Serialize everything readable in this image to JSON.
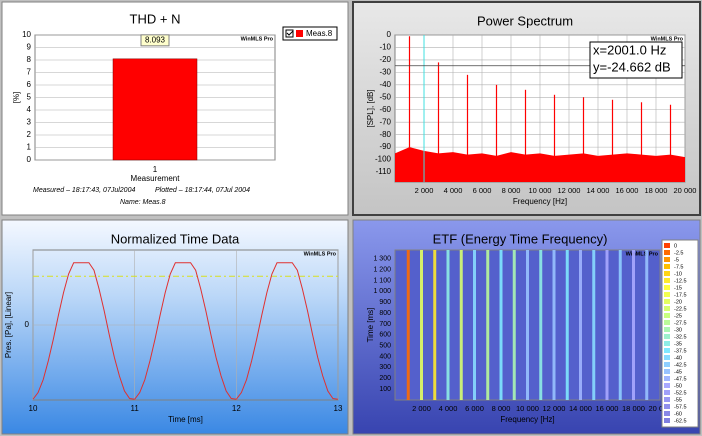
{
  "chart_data": [
    {
      "type": "bar",
      "title": "THD + N",
      "watermark": "WinMLS Pro",
      "ylabel": "[%]",
      "xlabel": "Measurement",
      "categories": [
        "1"
      ],
      "series": [
        {
          "name": "Meas.8",
          "color": "#ff0000",
          "values": [
            8.093
          ],
          "value_labels": [
            "8.093"
          ]
        }
      ],
      "ylim": [
        0,
        10
      ],
      "yticks": [
        0,
        1,
        2,
        3,
        4,
        5,
        6,
        7,
        8,
        9,
        10
      ],
      "grid": true,
      "legend": "top-right",
      "footer": [
        "Measured – 18:17:43, 07Jul2004",
        "Plotted – 18:17:44, 07Jul 2004",
        "Name: Meas.8"
      ]
    },
    {
      "type": "spectrum",
      "title": "Power Spectrum",
      "watermark": "WinMLS Pro",
      "ylabel": "[SPL], [dB]",
      "xlabel": "Frequency [Hz]",
      "xlim": [
        0,
        20000
      ],
      "ylim": [
        -118,
        0
      ],
      "xticks": [
        {
          "value": 2000,
          "label": "2 000"
        },
        {
          "value": 4000,
          "label": "4 000"
        },
        {
          "value": 6000,
          "label": "6 000"
        },
        {
          "value": 8000,
          "label": "8 000"
        },
        {
          "value": 10000,
          "label": "10 000"
        },
        {
          "value": 12000,
          "label": "12 000"
        },
        {
          "value": 14000,
          "label": "14 000"
        },
        {
          "value": 16000,
          "label": "16 000"
        },
        {
          "value": 18000,
          "label": "18 000"
        },
        {
          "value": 20000,
          "label": "20 000"
        }
      ],
      "yticks": [
        0,
        -10,
        -20,
        -30,
        -40,
        -50,
        -60,
        -70,
        -80,
        -90,
        -100,
        -110
      ],
      "grid": true,
      "series": [
        {
          "style": "stem",
          "color": "#ff0000",
          "x": [
            1000,
            3000,
            5000,
            7000,
            9000,
            11000,
            13000,
            15000,
            17000,
            19000
          ],
          "values": [
            -1,
            -22,
            -32,
            -40,
            -44,
            -48,
            -50,
            -52,
            -54,
            -56
          ]
        },
        {
          "style": "area",
          "color": "#ff0000",
          "x": [
            0,
            1000,
            2000,
            3000,
            4000,
            5000,
            6000,
            7000,
            8000,
            9000,
            10000,
            11000,
            12000,
            13000,
            14000,
            15000,
            16000,
            17000,
            18000,
            19000,
            20000
          ],
          "values": [
            -95,
            -90,
            -93,
            -95,
            -94,
            -96,
            -95,
            -97,
            -94,
            -96,
            -95,
            -97,
            -96,
            -95,
            -97,
            -96,
            -95,
            -96,
            -97,
            -96,
            -98
          ]
        }
      ],
      "cursor": {
        "x": 2001.0,
        "y": -24.662,
        "color": "#40e0e0",
        "labels": [
          "x=2001.0 Hz",
          "y=-24.662 dB"
        ]
      }
    },
    {
      "type": "line",
      "title": "Normalized Time Data",
      "watermark": "WinMLS Pro",
      "ylabel": "Pres. [Pa], [Linear]",
      "xlabel": "Time [ms]",
      "xlim": [
        10,
        13
      ],
      "ylim": [
        -1,
        1
      ],
      "xticks": [
        10,
        11,
        12,
        13
      ],
      "yticks": [
        0
      ],
      "grid": true,
      "series": [
        {
          "color": "#e03030",
          "x": [
            10,
            10.05,
            10.1,
            10.15,
            10.2,
            10.25,
            10.3,
            10.35,
            10.4,
            10.45,
            10.5,
            10.55,
            10.6,
            10.65,
            10.7,
            10.75,
            10.8,
            10.85,
            10.9,
            10.95,
            11,
            11.05,
            11.1,
            11.15,
            11.2,
            11.25,
            11.3,
            11.35,
            11.4,
            11.45,
            11.5,
            11.55,
            11.6,
            11.65,
            11.7,
            11.75,
            11.8,
            11.85,
            11.9,
            11.95,
            12,
            12.05,
            12.1,
            12.15,
            12.2,
            12.25,
            12.3,
            12.35,
            12.4,
            12.45,
            12.5,
            12.55,
            12.6,
            12.65,
            12.7,
            12.75,
            12.8,
            12.85,
            12.9,
            12.95,
            13
          ],
          "values": [
            -0.99,
            -0.9,
            -0.73,
            -0.48,
            -0.19,
            0.13,
            0.43,
            0.68,
            0.83,
            0.83,
            0.83,
            0.83,
            0.73,
            0.48,
            0.19,
            -0.13,
            -0.43,
            -0.68,
            -0.88,
            -0.98,
            -0.99,
            -0.9,
            -0.73,
            -0.48,
            -0.19,
            0.13,
            0.43,
            0.68,
            0.83,
            0.83,
            0.83,
            0.83,
            0.73,
            0.48,
            0.19,
            -0.13,
            -0.43,
            -0.68,
            -0.88,
            -0.98,
            -0.99,
            -0.9,
            -0.73,
            -0.48,
            -0.19,
            0.13,
            0.43,
            0.68,
            0.83,
            0.83,
            0.83,
            0.83,
            0.73,
            0.48,
            0.19,
            -0.13,
            -0.43,
            -0.68,
            -0.88,
            -0.98,
            -0.99
          ]
        }
      ],
      "hline": {
        "value": 0.65,
        "color": "#d8e020"
      }
    },
    {
      "type": "heatmap",
      "title": "ETF (Energy Time Frequency)",
      "watermark": "WinMLS Pro",
      "ylabel": "Time [ms]",
      "xlabel": "Frequency [Hz]",
      "xlim": [
        0,
        20000
      ],
      "ylim": [
        0,
        1380
      ],
      "background": "#5460cc",
      "xticks": [
        {
          "value": 2000,
          "label": "2 000"
        },
        {
          "value": 4000,
          "label": "4 000"
        },
        {
          "value": 6000,
          "label": "6 000"
        },
        {
          "value": 8000,
          "label": "8 000"
        },
        {
          "value": 10000,
          "label": "10 000"
        },
        {
          "value": 12000,
          "label": "12 000"
        },
        {
          "value": 14000,
          "label": "14 000"
        },
        {
          "value": 16000,
          "label": "16 000"
        },
        {
          "value": 18000,
          "label": "18 000"
        },
        {
          "value": 20000,
          "label": "20 000"
        }
      ],
      "yticks": [
        100,
        200,
        300,
        400,
        500,
        600,
        700,
        800,
        900,
        {
          "value": 1000,
          "label": "1 000"
        },
        {
          "value": 1100,
          "label": "1 100"
        },
        {
          "value": 1200,
          "label": "1 200"
        },
        {
          "value": 1300,
          "label": "1 300"
        }
      ],
      "series": [
        {
          "x": [
            1000,
            2000,
            3000,
            4000,
            5000,
            6000,
            7000,
            8000,
            9000,
            10000,
            11000,
            12000,
            13000,
            14000,
            15000,
            16000,
            17000,
            18000,
            19000
          ],
          "values": [
            -2.5,
            -20,
            -12.5,
            -35,
            -22.5,
            -40,
            -27.5,
            -37.5,
            -30,
            -45,
            -35,
            -45,
            -37.5,
            -47.5,
            -40,
            -50,
            -42.5,
            -50,
            -45
          ]
        }
      ],
      "colorbar": {
        "ticks": [
          0,
          -2.5,
          -5,
          -7.5,
          -10,
          -12.5,
          -15,
          -17.5,
          -20,
          -22.5,
          -25,
          -27.5,
          -30,
          -32.5,
          -35,
          -37.5,
          -40,
          -42.5,
          -45,
          -47.5,
          -50,
          -52.5,
          -55,
          -57.5,
          -60,
          -62.5
        ],
        "stops": [
          [
            0,
            "#ff4000"
          ],
          [
            -7.5,
            "#ffc000"
          ],
          [
            -15,
            "#ffff40"
          ],
          [
            -25,
            "#c8ff80"
          ],
          [
            -37.5,
            "#80e8ff"
          ],
          [
            -50,
            "#a8a8ff"
          ],
          [
            -62.5,
            "#8080e0"
          ]
        ]
      }
    }
  ]
}
